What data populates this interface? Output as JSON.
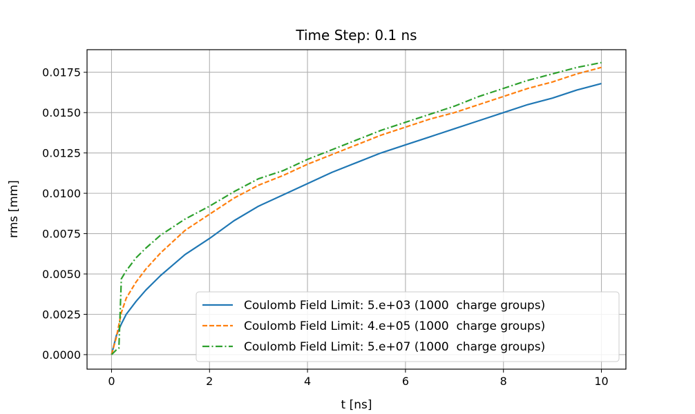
{
  "chart_data": {
    "type": "line",
    "title": "Time Step: 0.1 ns",
    "xlabel": "t [ns]",
    "ylabel": "rms [mm]",
    "xlim": [
      -0.5,
      10.5
    ],
    "ylim": [
      -0.0009,
      0.0189
    ],
    "xticks": [
      0,
      2,
      4,
      6,
      8,
      10
    ],
    "xtick_labels": [
      "0",
      "2",
      "4",
      "6",
      "8",
      "10"
    ],
    "yticks": [
      0,
      0.0025,
      0.005,
      0.0075,
      0.01,
      0.0125,
      0.015,
      0.0175
    ],
    "ytick_labels": [
      "0.0000",
      "0.0025",
      "0.0050",
      "0.0075",
      "0.0100",
      "0.0125",
      "0.0150",
      "0.0175"
    ],
    "grid": true,
    "legend_position": "lower-right",
    "series": [
      {
        "name": "Coulomb Field Limit: 5.e+03 (1000  charge groups)",
        "color": "#1f77b4",
        "dash": "solid",
        "x": [
          0,
          0.1,
          0.2,
          0.3,
          0.5,
          0.7,
          1.0,
          1.5,
          2.0,
          2.5,
          3.0,
          3.5,
          4.0,
          4.5,
          5.0,
          5.5,
          6.0,
          6.5,
          7.0,
          7.5,
          8.0,
          8.5,
          9.0,
          9.5,
          10.0
        ],
        "y": [
          0.0,
          0.0012,
          0.0019,
          0.0025,
          0.0033,
          0.004,
          0.0049,
          0.0062,
          0.0072,
          0.0083,
          0.0092,
          0.0099,
          0.0106,
          0.0113,
          0.0119,
          0.0125,
          0.013,
          0.0135,
          0.014,
          0.0145,
          0.015,
          0.0155,
          0.0159,
          0.0164,
          0.0168
        ]
      },
      {
        "name": "Coulomb Field Limit: 4.e+05 (1000  charge groups)",
        "color": "#ff7f0e",
        "dash": "dashed",
        "x": [
          0,
          0.1,
          0.2,
          0.3,
          0.5,
          0.7,
          1.0,
          1.5,
          2.0,
          2.5,
          3.0,
          3.5,
          4.0,
          4.5,
          5.0,
          5.5,
          6.0,
          6.5,
          7.0,
          7.5,
          8.0,
          8.5,
          9.0,
          9.5,
          10.0
        ],
        "y": [
          0.0,
          0.0011,
          0.0026,
          0.0035,
          0.0045,
          0.0053,
          0.0063,
          0.0077,
          0.0087,
          0.0097,
          0.0105,
          0.0111,
          0.0118,
          0.0124,
          0.013,
          0.0136,
          0.0141,
          0.0146,
          0.015,
          0.0155,
          0.016,
          0.0165,
          0.0169,
          0.0174,
          0.0178
        ]
      },
      {
        "name": "Coulomb Field Limit: 5.e+07 (1000  charge groups)",
        "color": "#2ca02c",
        "dash": "dashdot",
        "x": [
          0,
          0.1,
          0.15,
          0.2,
          0.3,
          0.5,
          0.7,
          1.0,
          1.5,
          2.0,
          2.5,
          3.0,
          3.5,
          4.0,
          4.5,
          5.0,
          5.5,
          6.0,
          6.5,
          7.0,
          7.5,
          8.0,
          8.5,
          9.0,
          9.5,
          10.0
        ],
        "y": [
          0.0,
          0.0003,
          0.0004,
          0.0047,
          0.0052,
          0.006,
          0.0066,
          0.0074,
          0.0084,
          0.0092,
          0.0101,
          0.0109,
          0.0114,
          0.0121,
          0.0127,
          0.0133,
          0.0139,
          0.0144,
          0.0149,
          0.0154,
          0.016,
          0.0165,
          0.017,
          0.0174,
          0.0178,
          0.0181
        ]
      }
    ]
  }
}
